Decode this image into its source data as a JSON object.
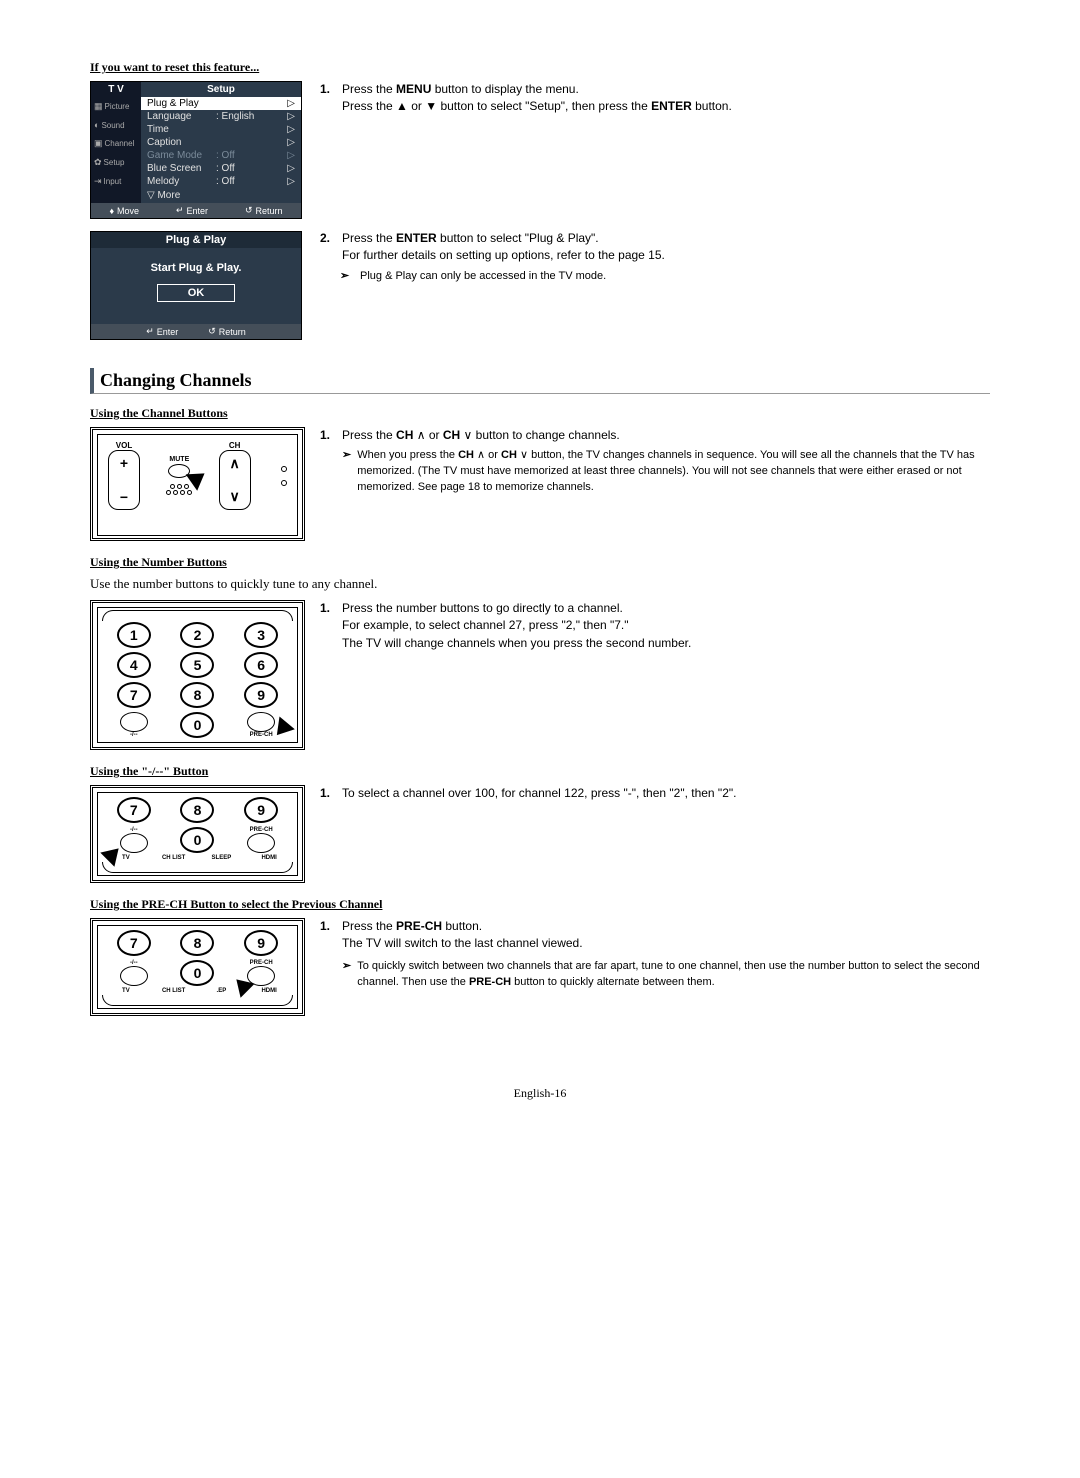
{
  "reset_heading": "If you want to reset this feature...",
  "tv_menu": {
    "tv_label": "T V",
    "title": "Setup",
    "side_tabs": [
      "Picture",
      "Sound",
      "Channel",
      "Setup",
      "Input"
    ],
    "rows": [
      {
        "label": "Plug & Play",
        "value": "",
        "selected": true
      },
      {
        "label": "Language",
        "value": ": English",
        "selected": false
      },
      {
        "label": "Time",
        "value": "",
        "selected": false
      },
      {
        "label": "Caption",
        "value": "",
        "selected": false
      },
      {
        "label": "Game Mode",
        "value": ": Off",
        "selected": false,
        "dim": true
      },
      {
        "label": "Blue Screen",
        "value": ": Off",
        "selected": false
      },
      {
        "label": "Melody",
        "value": ": Off",
        "selected": false
      }
    ],
    "more": "▽ More",
    "footer": {
      "move": "Move",
      "enter": "Enter",
      "return": "Return"
    }
  },
  "pp_box": {
    "title": "Plug & Play",
    "body": "Start Plug & Play.",
    "ok": "OK",
    "enter": "Enter",
    "return": "Return"
  },
  "step1a": "Press the <b>MENU</b> button to display the menu.<br>Press the ▲ or ▼ button to select \"Setup\", then press the <b>ENTER</b> button.",
  "step2a": "Press the <b>ENTER</b> button to select \"Plug & Play\".<br>For further details on setting up options, refer to the page 15.",
  "note2a": "Plug & Play can only be accessed in the TV mode.",
  "section_heading": "Changing Channels",
  "sub1": "Using the Channel Buttons",
  "step_ch1": "Press the <b>CH</b>  ∧  or <b>CH</b>  ∨  button to change channels.",
  "note_ch1": "When you press the <b>CH</b>  ∧  or <b>CH</b>  ∨  button, the TV changes channels in sequence. You will see all the channels that the TV has memorized. (The TV must have memorized at least three channels). You will not see channels that were either erased or not memorized. See page 18 to memorize channels.",
  "sub2": "Using the Number Buttons",
  "intro2": "Use the number buttons to quickly tune to any channel.",
  "step_num1": "Press the number buttons to go directly to a channel.<br>For example, to select channel 27, press \"2,\" then \"7.\"<br>The TV will change channels when you press the second number.",
  "sub3": "Using the \"-/--\" Button",
  "step_dash1": "To select a channel over 100, for channel 122, press \"-\", then \"2\", then \"2\".",
  "sub4": "Using the PRE-CH Button to select the Previous Channel",
  "step_pre1": "Press the <b>PRE-CH</b> button.<br>The TV will switch to the last channel viewed.",
  "note_pre1": "To quickly switch between two channels that are far apart, tune to one channel, then use the number button to select the second channel. Then use the <b>PRE-CH</b> button to quickly alternate between them.",
  "labels": {
    "vol": "VOL",
    "ch": "CH",
    "mute": "MUTE",
    "prech": "PRE-CH",
    "dash": "-/--",
    "tv": "TV",
    "chlist": "CH LIST",
    "sleep": "SLEEP",
    "hdmi": "HDMI"
  },
  "page_footer": "English-16"
}
